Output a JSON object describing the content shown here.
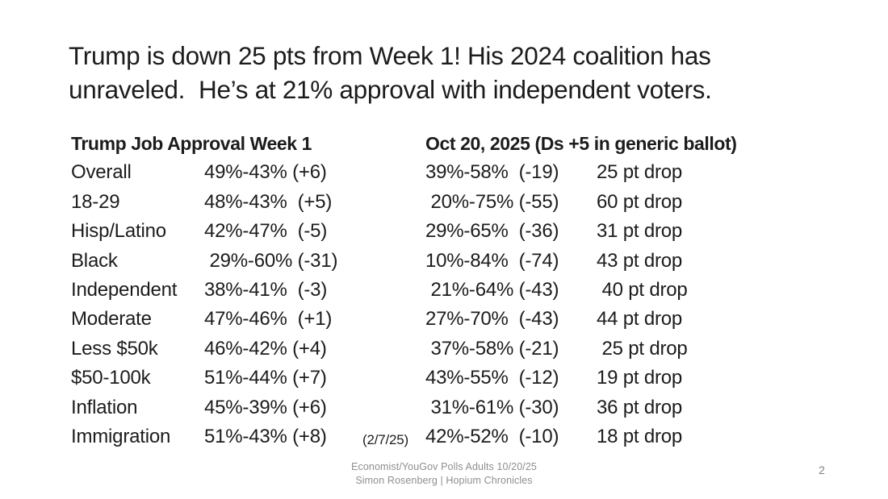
{
  "title": {
    "line1": "Trump is down 25 pts from Week 1! His 2024 coalition has",
    "line2": "unraveled.  He’s at 21% approval with independent voters."
  },
  "table": {
    "left_header": "Trump Job Approval Week 1",
    "right_header": "Oct 20, 2025 (Ds +5 in generic ballot)",
    "rows": [
      {
        "label": "Overall",
        "week1": "49%-43% (+6)",
        "note": "",
        "oct": "39%-58%  (-19)",
        "drop": "25 pt drop"
      },
      {
        "label": "18-29",
        "week1": "48%-43%  (+5)",
        "note": "",
        "oct": " 20%-75% (-55)",
        "drop": "60 pt drop"
      },
      {
        "label": "Hisp/Latino",
        "week1": "42%-47%  (-5)",
        "note": "",
        "oct": "29%-65%  (-36)",
        "drop": "31 pt drop"
      },
      {
        "label": "Black",
        "week1": " 29%-60% (-31)",
        "note": "",
        "oct": "10%-84%  (-74)",
        "drop": "43 pt drop"
      },
      {
        "label": "Independent",
        "week1": "38%-41%  (-3)",
        "note": "",
        "oct": " 21%-64% (-43)",
        "drop": " 40 pt drop"
      },
      {
        "label": "Moderate",
        "week1": "47%-46%  (+1)",
        "note": "",
        "oct": "27%-70%  (-43)",
        "drop": "44 pt drop"
      },
      {
        "label": "Less $50k",
        "week1": "46%-42% (+4)",
        "note": "",
        "oct": " 37%-58% (-21)",
        "drop": " 25 pt drop"
      },
      {
        "label": "$50-100k",
        "week1": "51%-44% (+7)",
        "note": "",
        "oct": "43%-55%  (-12)",
        "drop": "19 pt drop"
      },
      {
        "label": "Inflation",
        "week1": "45%-39% (+6)",
        "note": "",
        "oct": " 31%-61% (-30)",
        "drop": "36 pt drop"
      },
      {
        "label": "Immigration",
        "week1": "51%-43% (+8)",
        "note": "(2/7/25)",
        "oct": "42%-52%  (-10)",
        "drop": "18 pt drop"
      }
    ]
  },
  "footer": {
    "line1": "Economist/YouGov Polls Adults 10/20/25",
    "line2": "Simon Rosenberg | Hopium Chronicles",
    "page_number": "2"
  }
}
